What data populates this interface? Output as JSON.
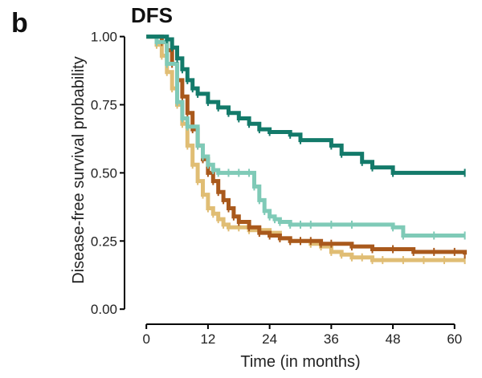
{
  "panel_label": "b",
  "chart_data": {
    "type": "line",
    "subtype": "kaplan-meier-step",
    "title": "DFS",
    "xlabel": "Time (in months)",
    "ylabel": "Disease-free survival probability",
    "xlim": [
      -3,
      63
    ],
    "ylim": [
      -0.02,
      1.04
    ],
    "xticks": [
      0,
      12,
      24,
      36,
      48,
      60
    ],
    "xtick_labels": [
      "0",
      "12",
      "24",
      "36",
      "48",
      "60"
    ],
    "yticks": [
      0,
      0.25,
      0.5,
      0.75,
      1.0
    ],
    "ytick_labels": [
      "0.00",
      "0.25",
      "0.50",
      "0.75",
      "1.00"
    ],
    "grid": false,
    "legend": "none",
    "series": [
      {
        "color": "#e0bd74",
        "x": [
          0,
          2,
          3,
          4,
          5,
          6,
          7,
          8,
          9,
          10,
          11,
          12,
          13,
          14,
          15,
          16,
          18,
          20,
          22,
          24,
          26,
          28,
          30,
          32,
          34,
          36,
          38,
          40,
          42,
          44,
          46,
          50,
          54,
          58,
          62
        ],
        "y": [
          1.0,
          0.97,
          0.93,
          0.87,
          0.81,
          0.75,
          0.68,
          0.6,
          0.53,
          0.47,
          0.42,
          0.37,
          0.35,
          0.33,
          0.31,
          0.3,
          0.3,
          0.29,
          0.29,
          0.28,
          0.26,
          0.25,
          0.25,
          0.24,
          0.23,
          0.21,
          0.2,
          0.19,
          0.19,
          0.18,
          0.18,
          0.18,
          0.18,
          0.18,
          0.18
        ]
      },
      {
        "color": "#a9591c",
        "x": [
          0,
          3,
          4,
          5,
          6,
          7,
          8,
          9,
          10,
          11,
          12,
          13,
          14,
          15,
          16,
          17,
          18,
          20,
          22,
          24,
          26,
          28,
          30,
          32,
          34,
          36,
          40,
          44,
          48,
          52,
          56,
          60,
          62
        ],
        "y": [
          1.0,
          0.98,
          0.95,
          0.9,
          0.84,
          0.78,
          0.72,
          0.66,
          0.6,
          0.55,
          0.5,
          0.47,
          0.43,
          0.4,
          0.37,
          0.34,
          0.32,
          0.3,
          0.28,
          0.27,
          0.26,
          0.25,
          0.25,
          0.25,
          0.24,
          0.24,
          0.23,
          0.22,
          0.22,
          0.21,
          0.21,
          0.21,
          0.2
        ]
      },
      {
        "color": "#7fcab7",
        "x": [
          0,
          2,
          4,
          6,
          7,
          8,
          10,
          11,
          12,
          13,
          14,
          16,
          18,
          20,
          21,
          22,
          23,
          24,
          25,
          26,
          28,
          30,
          32,
          36,
          40,
          48,
          50,
          56,
          62
        ],
        "y": [
          1.0,
          0.98,
          0.9,
          0.76,
          0.7,
          0.67,
          0.6,
          0.56,
          0.53,
          0.51,
          0.5,
          0.5,
          0.5,
          0.5,
          0.45,
          0.4,
          0.36,
          0.34,
          0.33,
          0.32,
          0.31,
          0.31,
          0.31,
          0.31,
          0.31,
          0.3,
          0.27,
          0.27,
          0.27
        ]
      },
      {
        "color": "#137a6a",
        "x": [
          0,
          4,
          5,
          6,
          7,
          8,
          9,
          10,
          12,
          14,
          16,
          18,
          20,
          22,
          24,
          28,
          30,
          36,
          38,
          42,
          44,
          48,
          62
        ],
        "y": [
          1.0,
          0.99,
          0.96,
          0.92,
          0.88,
          0.84,
          0.81,
          0.79,
          0.76,
          0.74,
          0.72,
          0.7,
          0.68,
          0.66,
          0.65,
          0.64,
          0.62,
          0.6,
          0.57,
          0.54,
          0.52,
          0.5,
          0.5
        ]
      }
    ]
  }
}
